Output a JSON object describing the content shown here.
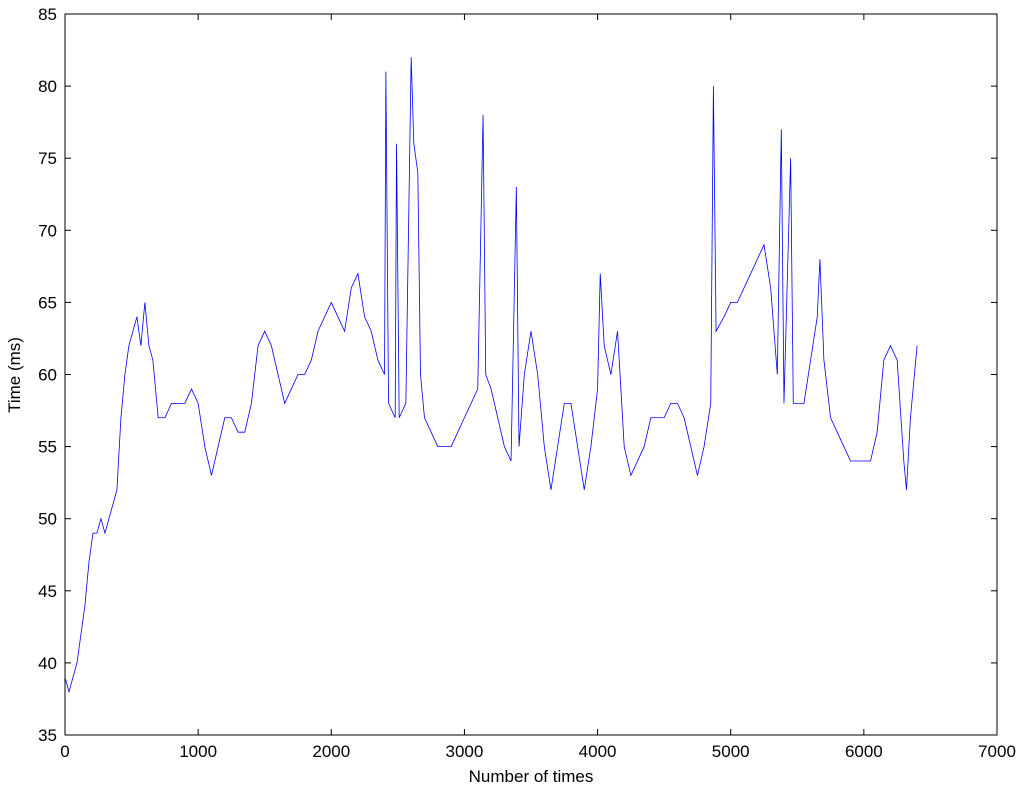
{
  "chart_data": {
    "type": "line",
    "xlabel": "Number of times",
    "ylabel": "Time (ms)",
    "x": [
      0,
      30,
      60,
      90,
      120,
      150,
      180,
      210,
      240,
      270,
      300,
      330,
      360,
      390,
      420,
      450,
      480,
      510,
      540,
      570,
      600,
      630,
      660,
      700,
      750,
      800,
      850,
      900,
      950,
      1000,
      1050,
      1100,
      1150,
      1200,
      1250,
      1300,
      1350,
      1400,
      1450,
      1500,
      1550,
      1600,
      1650,
      1700,
      1750,
      1800,
      1850,
      1900,
      1950,
      2000,
      2050,
      2100,
      2150,
      2200,
      2250,
      2300,
      2350,
      2400,
      2410,
      2430,
      2480,
      2490,
      2510,
      2560,
      2600,
      2620,
      2650,
      2670,
      2700,
      2750,
      2800,
      2850,
      2900,
      2950,
      3000,
      3050,
      3100,
      3140,
      3160,
      3200,
      3250,
      3300,
      3350,
      3390,
      3410,
      3450,
      3500,
      3550,
      3600,
      3650,
      3700,
      3750,
      3800,
      3850,
      3900,
      3950,
      4000,
      4020,
      4050,
      4100,
      4150,
      4200,
      4250,
      4300,
      4350,
      4400,
      4450,
      4500,
      4550,
      4600,
      4650,
      4700,
      4750,
      4800,
      4850,
      4870,
      4890,
      4950,
      5000,
      5050,
      5100,
      5150,
      5200,
      5250,
      5300,
      5350,
      5380,
      5400,
      5450,
      5470,
      5500,
      5550,
      5600,
      5650,
      5670,
      5700,
      5750,
      5800,
      5850,
      5900,
      5950,
      6000,
      6050,
      6100,
      6150,
      6200,
      6250,
      6300,
      6320,
      6350,
      6400
    ],
    "series": [
      {
        "color": "#0000ff",
        "values": [
          39,
          38,
          39,
          40,
          42,
          44,
          47,
          49,
          49,
          50,
          49,
          50,
          51,
          52,
          57,
          60,
          62,
          63,
          64,
          62,
          65,
          62,
          61,
          57,
          57,
          58,
          58,
          58,
          59,
          58,
          55,
          53,
          55,
          57,
          57,
          56,
          56,
          58,
          62,
          63,
          62,
          60,
          58,
          59,
          60,
          60,
          61,
          63,
          64,
          65,
          64,
          63,
          66,
          67,
          64,
          63,
          61,
          60,
          81,
          58,
          57,
          76,
          57,
          58,
          82,
          76,
          74,
          60,
          57,
          56,
          55,
          55,
          55,
          56,
          57,
          58,
          59,
          78,
          60,
          59,
          57,
          55,
          54,
          73,
          55,
          60,
          63,
          60,
          55,
          52,
          55,
          58,
          58,
          55,
          52,
          55,
          59,
          67,
          62,
          60,
          63,
          55,
          53,
          54,
          55,
          57,
          57,
          57,
          58,
          58,
          57,
          55,
          53,
          55,
          58,
          80,
          63,
          64,
          65,
          65,
          66,
          67,
          68,
          69,
          66,
          60,
          77,
          58,
          75,
          58,
          58,
          58,
          61,
          64,
          68,
          61,
          57,
          56,
          55,
          54,
          54,
          54,
          54,
          56,
          61,
          62,
          61,
          54,
          52,
          57,
          62
        ]
      }
    ],
    "xlim": [
      0,
      7000
    ],
    "xticks": [
      0,
      1000,
      2000,
      3000,
      4000,
      5000,
      6000,
      7000
    ],
    "ylim": [
      35,
      85
    ],
    "yticks": [
      35,
      40,
      45,
      50,
      55,
      60,
      65,
      70,
      75,
      80,
      85
    ]
  }
}
